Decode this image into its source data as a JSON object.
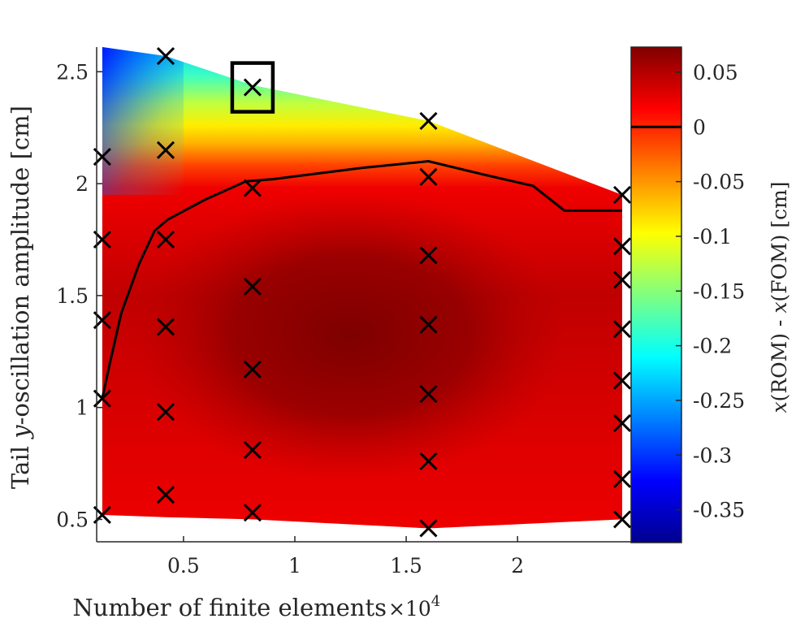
{
  "chart_data": {
    "type": "heatmap",
    "xlabel": "Number of finite elements",
    "x_multiplier": "×10",
    "x_multiplier_exp": "4",
    "ylabel_prefix": "Tail ",
    "ylabel_var": "y",
    "ylabel_suffix": "-oscillation amplitude [cm]",
    "x_ticks": [
      {
        "v": 0.5,
        "label": "0.5"
      },
      {
        "v": 1,
        "label": "1"
      },
      {
        "v": 1.5,
        "label": "1.5"
      },
      {
        "v": 2,
        "label": "2"
      }
    ],
    "y_ticks": [
      {
        "v": 0.5,
        "label": "0.5"
      },
      {
        "v": 1,
        "label": "1"
      },
      {
        "v": 1.5,
        "label": "1.5"
      },
      {
        "v": 2,
        "label": "2"
      },
      {
        "v": 2.5,
        "label": "2.5"
      }
    ],
    "xlim": [
      0.11,
      2.51
    ],
    "ylim": [
      0.4,
      2.61
    ],
    "colorbar": {
      "label_var1": "x",
      "label_mid1": "(ROM) - ",
      "label_var2": "x",
      "label_mid2": "(FOM) [cm]",
      "range": [
        -0.38,
        0.073
      ],
      "ticks": [
        {
          "v": 0.05,
          "label": "0.05"
        },
        {
          "v": 0,
          "label": "0"
        },
        {
          "v": -0.05,
          "label": "-0.05"
        },
        {
          "v": -0.1,
          "label": "-0.1"
        },
        {
          "v": -0.15,
          "label": "-0.15"
        },
        {
          "v": -0.2,
          "label": "-0.2"
        },
        {
          "v": -0.25,
          "label": "-0.25"
        },
        {
          "v": -0.3,
          "label": "-0.3"
        },
        {
          "v": -0.35,
          "label": "-0.35"
        }
      ],
      "zero_line": 0
    },
    "samples": [
      {
        "x": 0.135,
        "y": 0.52
      },
      {
        "x": 0.135,
        "y": 1.04
      },
      {
        "x": 0.135,
        "y": 1.39
      },
      {
        "x": 0.135,
        "y": 1.75
      },
      {
        "x": 0.135,
        "y": 2.12
      },
      {
        "x": 0.42,
        "y": 0.61
      },
      {
        "x": 0.42,
        "y": 0.98
      },
      {
        "x": 0.42,
        "y": 1.36
      },
      {
        "x": 0.42,
        "y": 1.75
      },
      {
        "x": 0.42,
        "y": 2.15
      },
      {
        "x": 0.42,
        "y": 2.57
      },
      {
        "x": 0.81,
        "y": 0.53
      },
      {
        "x": 0.81,
        "y": 0.81
      },
      {
        "x": 0.81,
        "y": 1.17
      },
      {
        "x": 0.81,
        "y": 1.54
      },
      {
        "x": 0.81,
        "y": 1.98
      },
      {
        "x": 0.81,
        "y": 2.43
      },
      {
        "x": 1.6,
        "y": 0.46
      },
      {
        "x": 1.6,
        "y": 0.76
      },
      {
        "x": 1.6,
        "y": 1.06
      },
      {
        "x": 1.6,
        "y": 1.37
      },
      {
        "x": 1.6,
        "y": 1.68
      },
      {
        "x": 1.6,
        "y": 2.03
      },
      {
        "x": 1.6,
        "y": 2.28
      },
      {
        "x": 2.47,
        "y": 0.5
      },
      {
        "x": 2.47,
        "y": 0.68
      },
      {
        "x": 2.47,
        "y": 0.93
      },
      {
        "x": 2.47,
        "y": 1.12
      },
      {
        "x": 2.47,
        "y": 1.35
      },
      {
        "x": 2.47,
        "y": 1.57
      },
      {
        "x": 2.47,
        "y": 1.72
      },
      {
        "x": 2.47,
        "y": 1.95
      }
    ],
    "highlighted_sample": {
      "x": 0.81,
      "y": 2.43
    },
    "zero_contour": [
      {
        "x": 0.135,
        "y": 1.04
      },
      {
        "x": 0.17,
        "y": 1.2
      },
      {
        "x": 0.22,
        "y": 1.42
      },
      {
        "x": 0.3,
        "y": 1.64
      },
      {
        "x": 0.37,
        "y": 1.79
      },
      {
        "x": 0.43,
        "y": 1.84
      },
      {
        "x": 0.6,
        "y": 1.93
      },
      {
        "x": 0.78,
        "y": 2.01
      },
      {
        "x": 0.9,
        "y": 2.02
      },
      {
        "x": 1.3,
        "y": 2.07
      },
      {
        "x": 1.6,
        "y": 2.1
      },
      {
        "x": 1.85,
        "y": 2.04
      },
      {
        "x": 2.07,
        "y": 1.99
      },
      {
        "x": 2.21,
        "y": 1.88
      },
      {
        "x": 2.47,
        "y": 1.88
      }
    ],
    "domain_top": [
      {
        "x": 0.135,
        "y": 2.61
      },
      {
        "x": 0.42,
        "y": 2.57
      },
      {
        "x": 0.81,
        "y": 2.44
      },
      {
        "x": 1.6,
        "y": 2.28
      },
      {
        "x": 2.47,
        "y": 1.95
      }
    ],
    "domain_bottom": [
      {
        "x": 0.135,
        "y": 0.52
      },
      {
        "x": 0.42,
        "y": 0.51
      },
      {
        "x": 0.81,
        "y": 0.5
      },
      {
        "x": 1.6,
        "y": 0.46
      },
      {
        "x": 2.47,
        "y": 0.5
      }
    ],
    "colors": {
      "cmap": [
        "#00008f",
        "#0000ff",
        "#0080ff",
        "#00ffff",
        "#80ff80",
        "#ffff00",
        "#ff8000",
        "#ff0000",
        "#800000"
      ],
      "marker": "#000000",
      "contour": "#000000"
    }
  }
}
